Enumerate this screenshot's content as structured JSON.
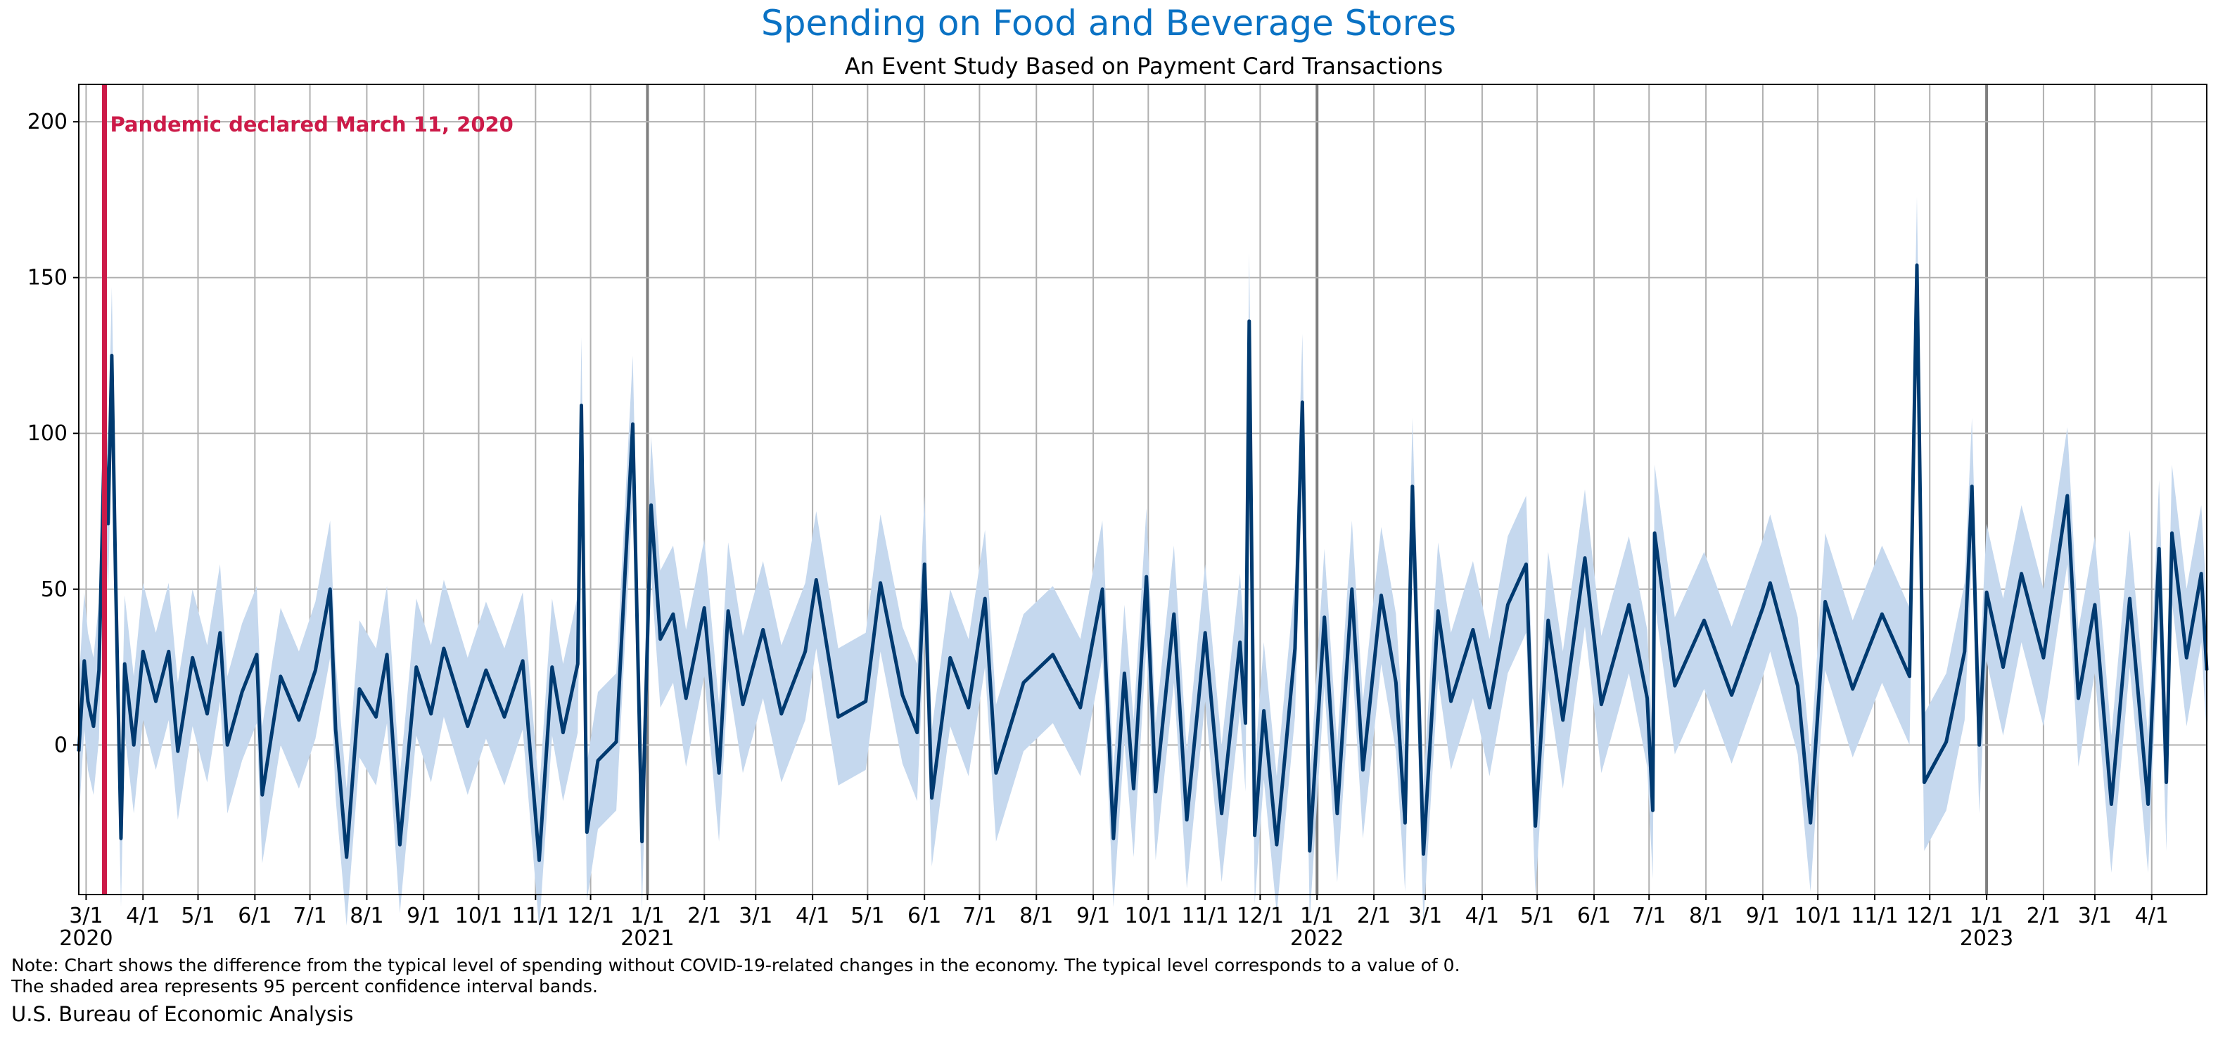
{
  "chart_data": {
    "type": "line",
    "title": "Spending on Food and Beverage Stores",
    "subtitle": "An Event Study Based on Payment Card Transactions",
    "xlabel": "",
    "ylabel": "",
    "x_range": [
      "2020-02-26",
      "2023-05-01"
    ],
    "ylim": [
      -48,
      212
    ],
    "yticks": [
      0,
      50,
      100,
      150,
      200
    ],
    "grid": true,
    "month_ticks": [
      {
        "date": "2020-03-01",
        "label": "3/1",
        "year": "2020"
      },
      {
        "date": "2020-04-01",
        "label": "4/1"
      },
      {
        "date": "2020-05-01",
        "label": "5/1"
      },
      {
        "date": "2020-06-01",
        "label": "6/1"
      },
      {
        "date": "2020-07-01",
        "label": "7/1"
      },
      {
        "date": "2020-08-01",
        "label": "8/1"
      },
      {
        "date": "2020-09-01",
        "label": "9/1"
      },
      {
        "date": "2020-10-01",
        "label": "10/1"
      },
      {
        "date": "2020-11-01",
        "label": "11/1"
      },
      {
        "date": "2020-12-01",
        "label": "12/1"
      },
      {
        "date": "2021-01-01",
        "label": "1/1",
        "year": "2021"
      },
      {
        "date": "2021-02-01",
        "label": "2/1"
      },
      {
        "date": "2021-03-01",
        "label": "3/1"
      },
      {
        "date": "2021-04-01",
        "label": "4/1"
      },
      {
        "date": "2021-05-01",
        "label": "5/1"
      },
      {
        "date": "2021-06-01",
        "label": "6/1"
      },
      {
        "date": "2021-07-01",
        "label": "7/1"
      },
      {
        "date": "2021-08-01",
        "label": "8/1"
      },
      {
        "date": "2021-09-01",
        "label": "9/1"
      },
      {
        "date": "2021-10-01",
        "label": "10/1"
      },
      {
        "date": "2021-11-01",
        "label": "11/1"
      },
      {
        "date": "2021-12-01",
        "label": "12/1"
      },
      {
        "date": "2022-01-01",
        "label": "1/1",
        "year": "2022"
      },
      {
        "date": "2022-02-01",
        "label": "2/1"
      },
      {
        "date": "2022-03-01",
        "label": "3/1"
      },
      {
        "date": "2022-04-01",
        "label": "4/1"
      },
      {
        "date": "2022-05-01",
        "label": "5/1"
      },
      {
        "date": "2022-06-01",
        "label": "6/1"
      },
      {
        "date": "2022-07-01",
        "label": "7/1"
      },
      {
        "date": "2022-08-01",
        "label": "8/1"
      },
      {
        "date": "2022-09-01",
        "label": "9/1"
      },
      {
        "date": "2022-10-01",
        "label": "10/1"
      },
      {
        "date": "2022-11-01",
        "label": "11/1"
      },
      {
        "date": "2022-12-01",
        "label": "12/1"
      },
      {
        "date": "2023-01-01",
        "label": "1/1",
        "year": "2023"
      },
      {
        "date": "2023-02-01",
        "label": "2/1"
      },
      {
        "date": "2023-03-01",
        "label": "3/1"
      },
      {
        "date": "2023-04-01",
        "label": "4/1"
      }
    ],
    "event": {
      "date": "2020-03-11",
      "label": "Pandemic declared March 11, 2020",
      "color": "#cc1a48"
    },
    "series": [
      {
        "color": "#003a70",
        "band_color": "#c5d8ee",
        "band_half_width": 22,
        "points": [
          [
            "2020-02-26",
            -2
          ],
          [
            "2020-02-29",
            27
          ],
          [
            "2020-03-02",
            14
          ],
          [
            "2020-03-05",
            6
          ],
          [
            "2020-03-08",
            24
          ],
          [
            "2020-03-11",
            99
          ],
          [
            "2020-03-13",
            71
          ],
          [
            "2020-03-15",
            125
          ],
          [
            "2020-03-17",
            55
          ],
          [
            "2020-03-20",
            -30
          ],
          [
            "2020-03-22",
            26
          ],
          [
            "2020-03-27",
            0
          ],
          [
            "2020-04-01",
            30
          ],
          [
            "2020-04-08",
            14
          ],
          [
            "2020-04-15",
            30
          ],
          [
            "2020-04-20",
            -2
          ],
          [
            "2020-04-28",
            28
          ],
          [
            "2020-05-06",
            10
          ],
          [
            "2020-05-13",
            36
          ],
          [
            "2020-05-17",
            0
          ],
          [
            "2020-05-25",
            17
          ],
          [
            "2020-06-02",
            29
          ],
          [
            "2020-06-05",
            -16
          ],
          [
            "2020-06-15",
            22
          ],
          [
            "2020-06-25",
            8
          ],
          [
            "2020-07-04",
            24
          ],
          [
            "2020-07-12",
            50
          ],
          [
            "2020-07-15",
            5
          ],
          [
            "2020-07-21",
            -36
          ],
          [
            "2020-07-28",
            18
          ],
          [
            "2020-08-06",
            9
          ],
          [
            "2020-08-12",
            29
          ],
          [
            "2020-08-19",
            -32
          ],
          [
            "2020-08-28",
            25
          ],
          [
            "2020-09-05",
            10
          ],
          [
            "2020-09-12",
            31
          ],
          [
            "2020-09-25",
            6
          ],
          [
            "2020-10-05",
            24
          ],
          [
            "2020-10-15",
            9
          ],
          [
            "2020-10-25",
            27
          ],
          [
            "2020-11-03",
            -37
          ],
          [
            "2020-11-10",
            25
          ],
          [
            "2020-11-16",
            4
          ],
          [
            "2020-11-24",
            26
          ],
          [
            "2020-11-26",
            109
          ],
          [
            "2020-11-29",
            -28
          ],
          [
            "2020-12-05",
            -5
          ],
          [
            "2020-12-15",
            1
          ],
          [
            "2020-12-24",
            103
          ],
          [
            "2020-12-29",
            -31
          ],
          [
            "2021-01-03",
            77
          ],
          [
            "2021-01-08",
            34
          ],
          [
            "2021-01-15",
            42
          ],
          [
            "2021-01-22",
            15
          ],
          [
            "2021-02-01",
            44
          ],
          [
            "2021-02-09",
            -9
          ],
          [
            "2021-02-14",
            43
          ],
          [
            "2021-02-22",
            13
          ],
          [
            "2021-03-05",
            37
          ],
          [
            "2021-03-15",
            10
          ],
          [
            "2021-03-28",
            30
          ],
          [
            "2021-04-03",
            53
          ],
          [
            "2021-04-15",
            9
          ],
          [
            "2021-04-30",
            14
          ],
          [
            "2021-05-08",
            52
          ],
          [
            "2021-05-20",
            16
          ],
          [
            "2021-05-28",
            4
          ],
          [
            "2021-06-01",
            58
          ],
          [
            "2021-06-05",
            -17
          ],
          [
            "2021-06-15",
            28
          ],
          [
            "2021-06-25",
            12
          ],
          [
            "2021-07-04",
            47
          ],
          [
            "2021-07-10",
            -9
          ],
          [
            "2021-07-25",
            20
          ],
          [
            "2021-08-10",
            29
          ],
          [
            "2021-08-25",
            12
          ],
          [
            "2021-09-06",
            50
          ],
          [
            "2021-09-12",
            -30
          ],
          [
            "2021-09-18",
            23
          ],
          [
            "2021-09-23",
            -14
          ],
          [
            "2021-09-30",
            54
          ],
          [
            "2021-10-05",
            -15
          ],
          [
            "2021-10-15",
            42
          ],
          [
            "2021-10-22",
            -24
          ],
          [
            "2021-11-01",
            36
          ],
          [
            "2021-11-10",
            -22
          ],
          [
            "2021-11-20",
            33
          ],
          [
            "2021-11-23",
            7
          ],
          [
            "2021-11-25",
            136
          ],
          [
            "2021-11-28",
            -29
          ],
          [
            "2021-12-03",
            11
          ],
          [
            "2021-12-10",
            -32
          ],
          [
            "2021-12-20",
            31
          ],
          [
            "2021-12-24",
            110
          ],
          [
            "2021-12-28",
            -34
          ],
          [
            "2022-01-05",
            41
          ],
          [
            "2022-01-12",
            -22
          ],
          [
            "2022-01-20",
            50
          ],
          [
            "2022-01-26",
            -8
          ],
          [
            "2022-02-05",
            48
          ],
          [
            "2022-02-13",
            20
          ],
          [
            "2022-02-18",
            -25
          ],
          [
            "2022-02-22",
            83
          ],
          [
            "2022-02-28",
            -35
          ],
          [
            "2022-03-08",
            43
          ],
          [
            "2022-03-15",
            14
          ],
          [
            "2022-03-27",
            37
          ],
          [
            "2022-04-05",
            12
          ],
          [
            "2022-04-15",
            45
          ],
          [
            "2022-04-25",
            58
          ],
          [
            "2022-04-30",
            -26
          ],
          [
            "2022-05-07",
            40
          ],
          [
            "2022-05-15",
            8
          ],
          [
            "2022-05-27",
            60
          ],
          [
            "2022-06-05",
            13
          ],
          [
            "2022-06-20",
            45
          ],
          [
            "2022-06-30",
            15
          ],
          [
            "2022-07-04",
            68
          ],
          [
            "2022-07-03",
            -21
          ],
          [
            "2022-07-15",
            19
          ],
          [
            "2022-07-31",
            40
          ],
          [
            "2022-08-15",
            16
          ],
          [
            "2022-09-01",
            44
          ],
          [
            "2022-09-05",
            52
          ],
          [
            "2022-09-20",
            19
          ],
          [
            "2022-09-27",
            -25
          ],
          [
            "2022-10-05",
            46
          ],
          [
            "2022-10-20",
            18
          ],
          [
            "2022-11-05",
            42
          ],
          [
            "2022-11-20",
            22
          ],
          [
            "2022-11-24",
            154
          ],
          [
            "2022-11-28",
            -12
          ],
          [
            "2022-12-10",
            1
          ],
          [
            "2022-12-20",
            30
          ],
          [
            "2022-12-24",
            83
          ],
          [
            "2022-12-28",
            0
          ],
          [
            "2023-01-01",
            49
          ],
          [
            "2023-01-10",
            25
          ],
          [
            "2023-01-20",
            55
          ],
          [
            "2023-02-01",
            28
          ],
          [
            "2023-02-14",
            80
          ],
          [
            "2023-02-20",
            15
          ],
          [
            "2023-03-01",
            45
          ],
          [
            "2023-03-10",
            -19
          ],
          [
            "2023-03-20",
            47
          ],
          [
            "2023-03-30",
            -19
          ],
          [
            "2023-04-05",
            63
          ],
          [
            "2023-04-09",
            -12
          ],
          [
            "2023-04-12",
            68
          ],
          [
            "2023-04-20",
            28
          ],
          [
            "2023-04-28",
            55
          ],
          [
            "2023-05-01",
            24
          ]
        ]
      }
    ]
  },
  "note_line1": "Note: Chart shows the difference from the typical level of spending without COVID-19-related changes in the economy. The typical level corresponds to a value of 0.",
  "note_line2": "The shaded area represents 95 percent confidence interval bands.",
  "source": "U.S. Bureau of Economic Analysis",
  "colors": {
    "title": "#0a72c4",
    "line": "#003a70",
    "band": "#c5d8ee",
    "event": "#cc1a48",
    "grid": "#b0b0b0"
  }
}
